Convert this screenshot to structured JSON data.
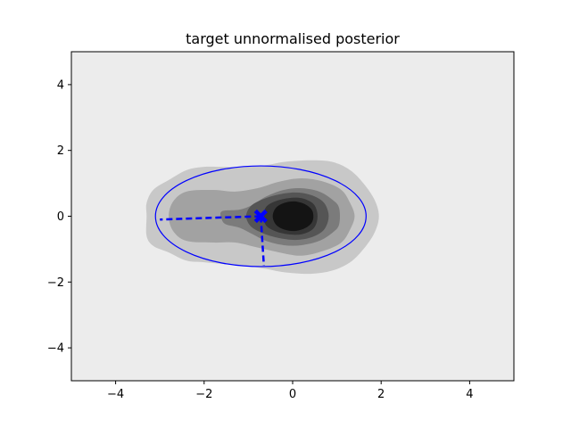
{
  "chart_data": {
    "type": "contour",
    "title": "target unnormalised posterior",
    "xlabel": "",
    "ylabel": "",
    "xlim": [
      -5,
      5
    ],
    "ylim": [
      -5,
      5
    ],
    "grid": false,
    "legend": "none",
    "x_ticks": [
      -4,
      -2,
      0,
      2,
      4
    ],
    "y_ticks": [
      -4,
      -2,
      0,
      2,
      4
    ],
    "x_tick_labels": [
      "−4",
      "−2",
      "0",
      "2",
      "4"
    ],
    "y_tick_labels": [
      "−4",
      "−2",
      "0",
      "2",
      "4"
    ],
    "colors": {
      "background_level": "#ececec",
      "contour_levels": [
        "#c8c8c8",
        "#a2a2a2",
        "#7b7b7b",
        "#555555",
        "#363636",
        "#141414"
      ],
      "overlay": "#0000ff"
    },
    "contours": [
      {
        "level": 1,
        "color": "#c8c8c8",
        "points": [
          [
            -3.3,
            -0.6
          ],
          [
            -3.3,
            0.0
          ],
          [
            -3.3,
            0.4
          ],
          [
            -3.15,
            0.8
          ],
          [
            -2.8,
            1.1
          ],
          [
            -2.4,
            1.4
          ],
          [
            -2.0,
            1.5
          ],
          [
            -1.6,
            1.5
          ],
          [
            -1.1,
            1.5
          ],
          [
            -0.6,
            1.55
          ],
          [
            -0.2,
            1.65
          ],
          [
            0.4,
            1.7
          ],
          [
            0.9,
            1.65
          ],
          [
            1.3,
            1.4
          ],
          [
            1.6,
            1.0
          ],
          [
            1.85,
            0.5
          ],
          [
            1.95,
            0.0
          ],
          [
            1.85,
            -0.5
          ],
          [
            1.6,
            -1.0
          ],
          [
            1.3,
            -1.4
          ],
          [
            0.9,
            -1.65
          ],
          [
            0.4,
            -1.75
          ],
          [
            -0.2,
            -1.7
          ],
          [
            -0.6,
            -1.6
          ],
          [
            -1.1,
            -1.5
          ],
          [
            -1.6,
            -1.45
          ],
          [
            -2.0,
            -1.4
          ],
          [
            -2.4,
            -1.35
          ],
          [
            -2.8,
            -1.1
          ],
          [
            -3.15,
            -0.9
          ]
        ]
      },
      {
        "level": 2,
        "color": "#a2a2a2",
        "points": [
          [
            -2.8,
            0.0
          ],
          [
            -2.7,
            0.45
          ],
          [
            -2.4,
            0.75
          ],
          [
            -1.8,
            0.8
          ],
          [
            -1.3,
            0.75
          ],
          [
            -0.8,
            0.85
          ],
          [
            -0.3,
            1.05
          ],
          [
            0.2,
            1.15
          ],
          [
            0.7,
            1.05
          ],
          [
            1.1,
            0.8
          ],
          [
            1.3,
            0.4
          ],
          [
            1.4,
            0.0
          ],
          [
            1.3,
            -0.4
          ],
          [
            1.1,
            -0.8
          ],
          [
            0.7,
            -1.05
          ],
          [
            0.2,
            -1.2
          ],
          [
            -0.3,
            -1.1
          ],
          [
            -0.8,
            -0.95
          ],
          [
            -1.3,
            -0.8
          ],
          [
            -1.8,
            -0.8
          ],
          [
            -2.4,
            -0.75
          ],
          [
            -2.7,
            -0.45
          ]
        ]
      },
      {
        "level": 3,
        "color": "#7b7b7b",
        "points": [
          [
            -1.6,
            -0.1
          ],
          [
            -1.6,
            0.15
          ],
          [
            -1.2,
            0.2
          ],
          [
            -0.9,
            0.35
          ],
          [
            -0.6,
            0.6
          ],
          [
            -0.2,
            0.8
          ],
          [
            0.2,
            0.85
          ],
          [
            0.6,
            0.75
          ],
          [
            0.9,
            0.5
          ],
          [
            1.05,
            0.25
          ],
          [
            1.05,
            -0.25
          ],
          [
            0.9,
            -0.5
          ],
          [
            0.6,
            -0.75
          ],
          [
            0.2,
            -0.88
          ],
          [
            -0.2,
            -0.88
          ],
          [
            -0.6,
            -0.75
          ],
          [
            -0.9,
            -0.55
          ],
          [
            -1.2,
            -0.35
          ],
          [
            -1.5,
            -0.25
          ]
        ]
      },
      {
        "level": 4,
        "color": "#555555",
        "points": [
          [
            -1.05,
            0.0
          ],
          [
            -0.95,
            0.3
          ],
          [
            -0.7,
            0.5
          ],
          [
            -0.35,
            0.65
          ],
          [
            0.05,
            0.72
          ],
          [
            0.4,
            0.65
          ],
          [
            0.68,
            0.45
          ],
          [
            0.8,
            0.15
          ],
          [
            0.8,
            -0.15
          ],
          [
            0.68,
            -0.45
          ],
          [
            0.4,
            -0.65
          ],
          [
            0.05,
            -0.72
          ],
          [
            -0.35,
            -0.65
          ],
          [
            -0.7,
            -0.5
          ],
          [
            -0.95,
            -0.3
          ]
        ]
      },
      {
        "level": 5,
        "color": "#363636",
        "points": [
          [
            -0.65,
            0.0
          ],
          [
            -0.6,
            0.28
          ],
          [
            -0.4,
            0.45
          ],
          [
            -0.1,
            0.55
          ],
          [
            0.2,
            0.55
          ],
          [
            0.45,
            0.4
          ],
          [
            0.55,
            0.15
          ],
          [
            0.55,
            -0.15
          ],
          [
            0.45,
            -0.4
          ],
          [
            0.2,
            -0.55
          ],
          [
            -0.1,
            -0.55
          ],
          [
            -0.4,
            -0.45
          ],
          [
            -0.6,
            -0.28
          ]
        ]
      },
      {
        "level": 6,
        "color": "#141414",
        "points": [
          [
            -0.45,
            0.0
          ],
          [
            -0.38,
            0.25
          ],
          [
            -0.2,
            0.4
          ],
          [
            0.05,
            0.45
          ],
          [
            0.3,
            0.35
          ],
          [
            0.45,
            0.15
          ],
          [
            0.45,
            -0.15
          ],
          [
            0.3,
            -0.35
          ],
          [
            0.05,
            -0.45
          ],
          [
            -0.2,
            -0.4
          ],
          [
            -0.38,
            -0.25
          ]
        ]
      }
    ],
    "ellipse": {
      "center": [
        -0.72,
        0.0
      ],
      "rx": 2.38,
      "ry": 1.53,
      "color": "#0000ff"
    },
    "marker": {
      "x": -0.72,
      "y": 0.0,
      "symbol": "X",
      "color": "#0000ff"
    },
    "dashed_lines": [
      {
        "x": [
          -0.72,
          -3.0
        ],
        "y": [
          0.0,
          -0.1
        ],
        "color": "#0000ff"
      },
      {
        "x": [
          -0.72,
          -0.65
        ],
        "y": [
          0.0,
          -1.5
        ],
        "color": "#0000ff"
      }
    ]
  }
}
